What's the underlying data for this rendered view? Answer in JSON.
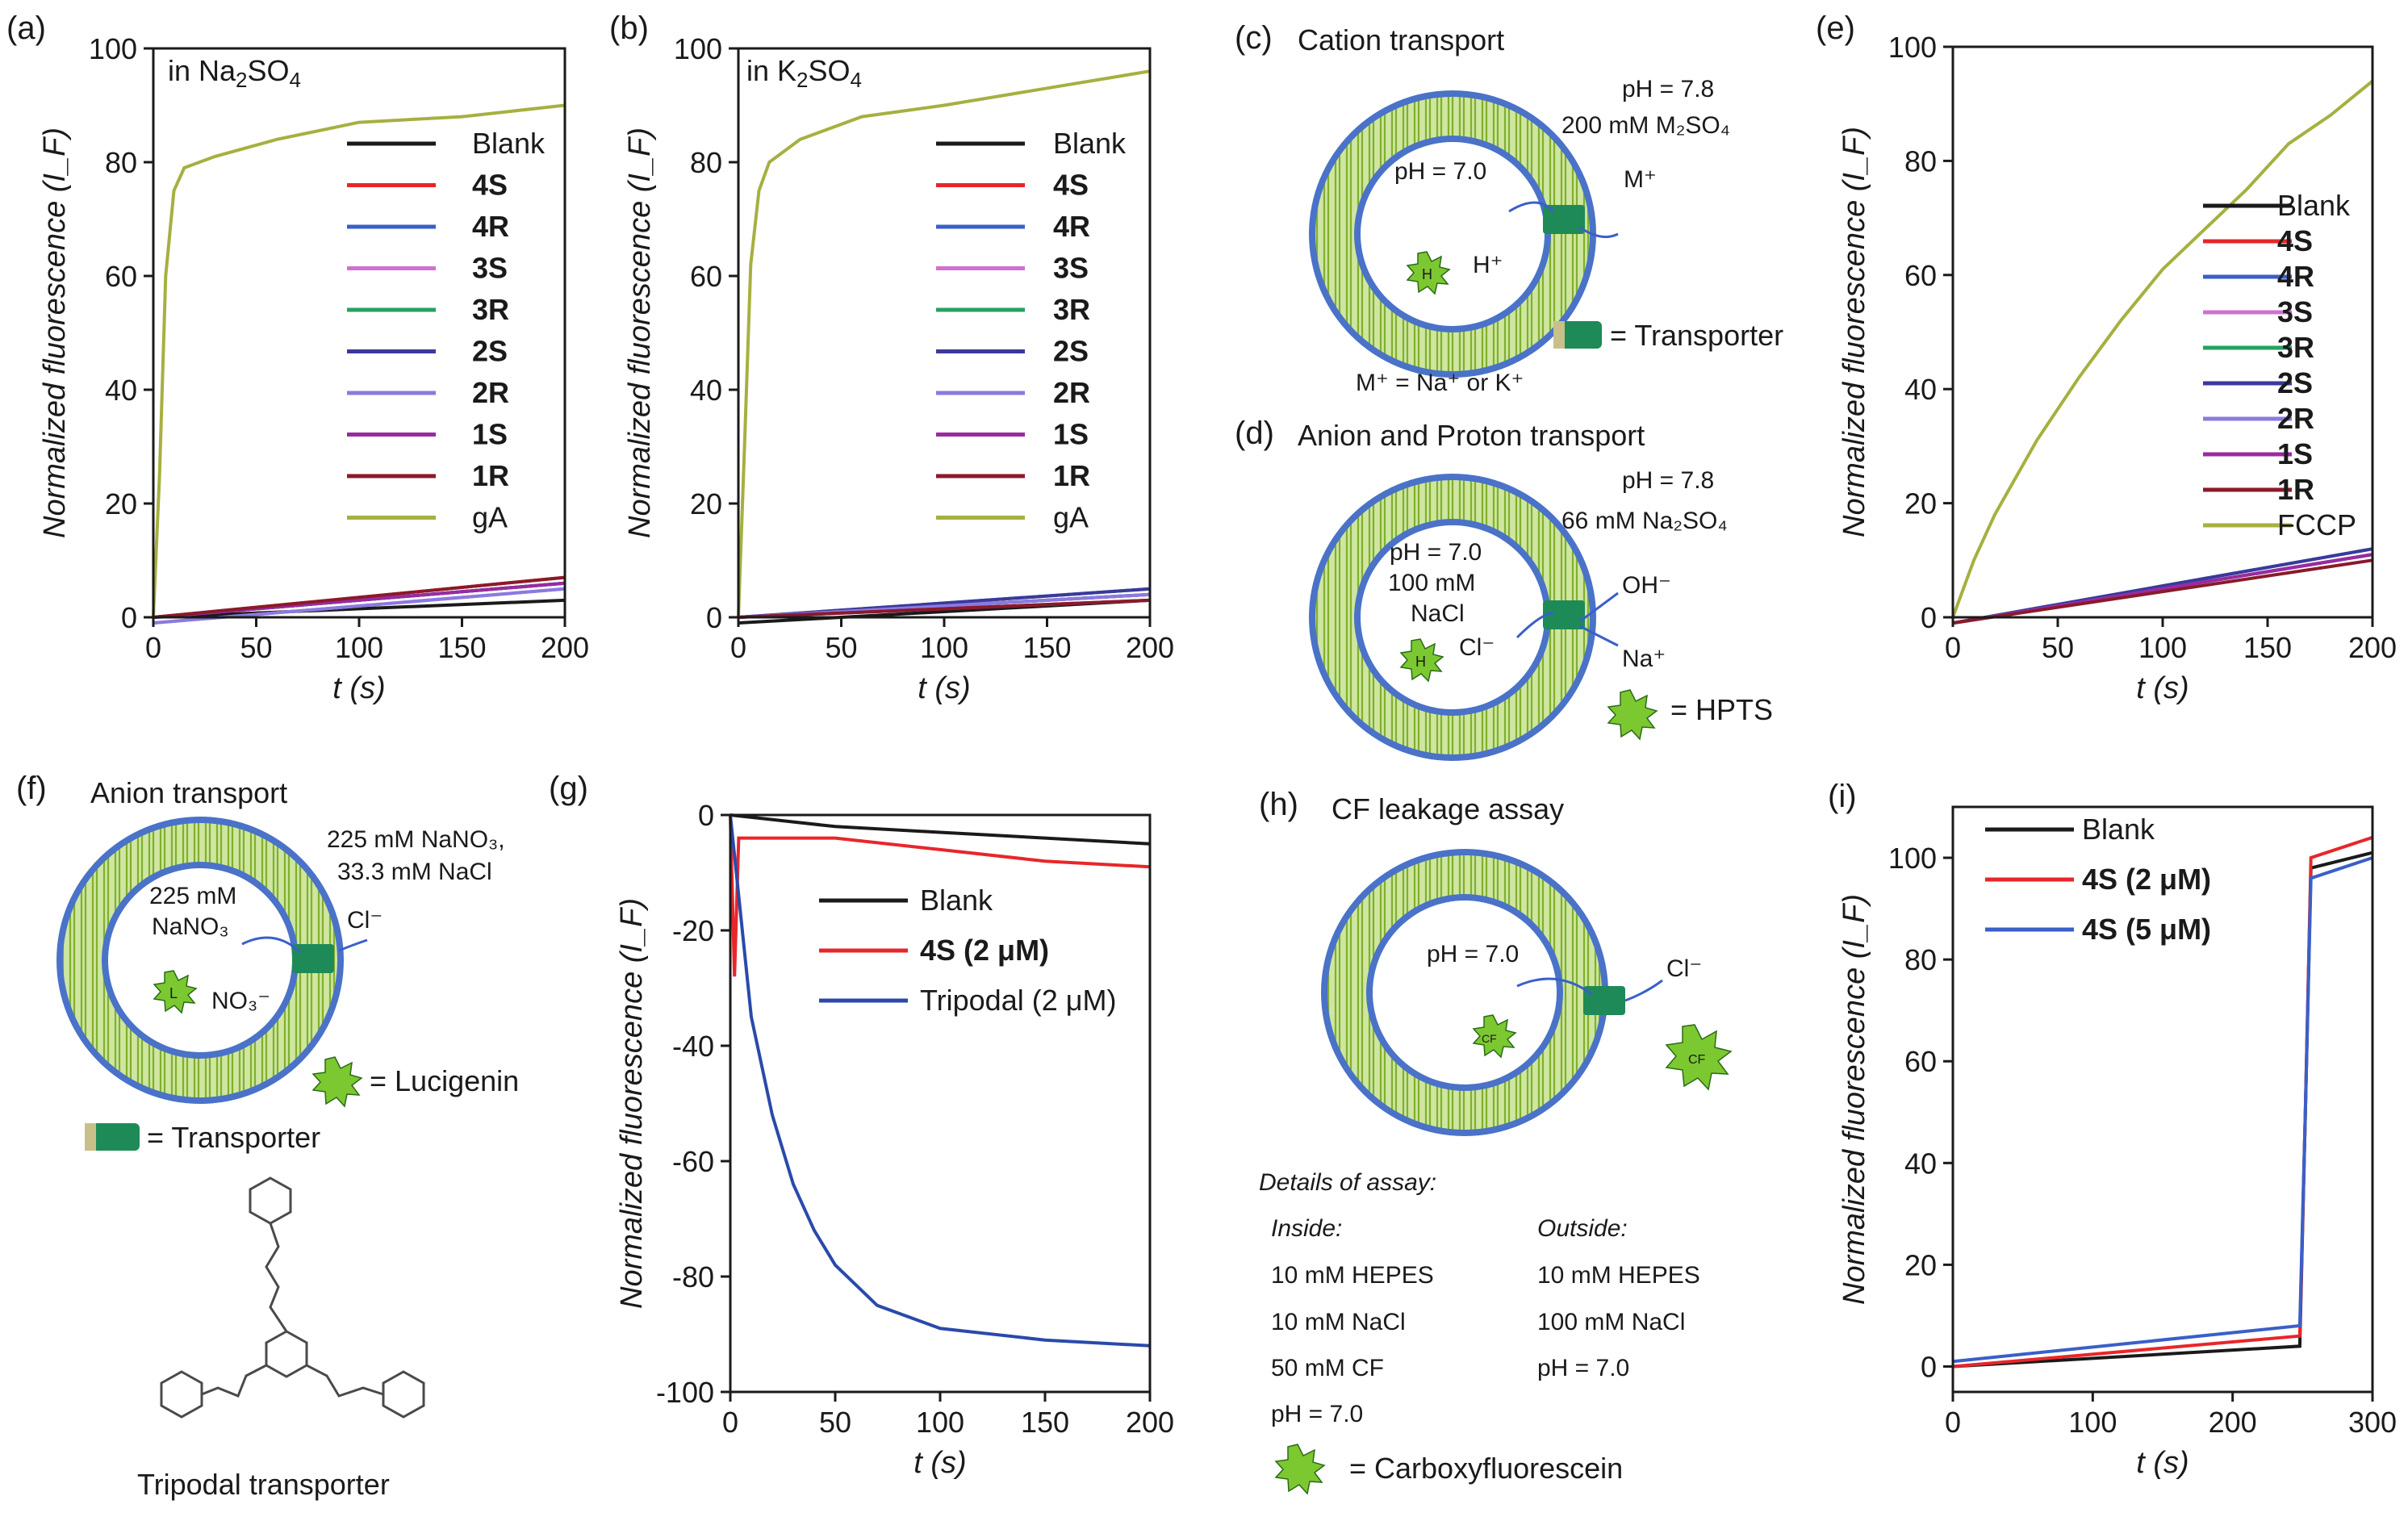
{
  "colors": {
    "blank": "#1a1a1a",
    "4S": "#e8262a",
    "4R": "#3a5fc8",
    "3S": "#d070d0",
    "3R": "#28a060",
    "2S": "#3a3a9a",
    "2R": "#8a7ae0",
    "1S": "#9a2aa0",
    "1R": "#8a1a2a",
    "gA": "#a6b040",
    "tripodal": "#2a4aaa",
    "membrane": "#4a72c8",
    "lipid": "#8cbc3a",
    "transporter": "#1e8a58",
    "dye": "#7cc830"
  },
  "panels": {
    "a": {
      "letter": "(a)",
      "tag": "in Na",
      "tag_sub": "2",
      "tag_tail": "SO",
      "tag_sub2": "4"
    },
    "b": {
      "letter": "(b)",
      "tag": "in K",
      "tag_sub": "2",
      "tag_tail": "SO",
      "tag_sub2": "4"
    },
    "c": {
      "letter": "(c)",
      "title": "Cation transport",
      "ph_out": "pH = 7.8",
      "salt_out": "200 mM M₂SO₄",
      "ph_in": "pH = 7.0",
      "ion_out": "M⁺",
      "ion_in": "H⁺",
      "legend_transporter": "= Transporter",
      "note": "M⁺ = Na⁺ or K⁺",
      "dye_label": "H"
    },
    "d": {
      "letter": "(d)",
      "title": "Anion and Proton transport",
      "ph_out": "pH = 7.8",
      "salt_out": "66 mM Na₂SO₄",
      "ph_in": "pH = 7.0",
      "salt_in_1": "100 mM",
      "salt_in_2": "NaCl",
      "ion_oh": "OH⁻",
      "ion_cl": "Cl⁻",
      "ion_na": "Na⁺",
      "legend_dye": "= HPTS",
      "dye_label": "H"
    },
    "e": {
      "letter": "(e)"
    },
    "f": {
      "letter": "(f)",
      "title": "Anion transport",
      "salt_out_1": "225 mM NaNO₃,",
      "salt_out_2": "33.3 mM NaCl",
      "salt_in_1": "225 mM",
      "salt_in_2": "NaNO₃",
      "ion_cl": "Cl⁻",
      "ion_no3": "NO₃⁻",
      "legend_dye": "= Lucigenin",
      "legend_transporter": "= Transporter",
      "structure_caption": "Tripodal transporter",
      "dye_label": "L"
    },
    "g": {
      "letter": "(g)"
    },
    "h": {
      "letter": "(h)",
      "title": "CF leakage assay",
      "ph_in": "pH = 7.0",
      "ion_cl": "Cl⁻",
      "details_title": "Details of assay:",
      "inside_title": "Inside:",
      "outside_title": "Outside:",
      "inside": [
        "10 mM HEPES",
        "10 mM NaCl",
        "50 mM CF",
        "pH = 7.0"
      ],
      "outside": [
        "10 mM HEPES",
        "100 mM NaCl",
        "pH = 7.0"
      ],
      "legend_dye": "= Carboxyfluorescein",
      "dye_label": "CF"
    },
    "i": {
      "letter": "(i)"
    }
  },
  "chart_data": [
    {
      "id": "a",
      "type": "line",
      "title": "in Na2SO4",
      "xlabel": "t (s)",
      "ylabel": "Normalized fluorescence (I_F)",
      "xlim": [
        0,
        200
      ],
      "ylim": [
        0,
        100
      ],
      "xticks": [
        "0",
        "50",
        "100",
        "150",
        "200"
      ],
      "yticks": [
        "0",
        "20",
        "40",
        "60",
        "80",
        "100"
      ],
      "legend": [
        "Blank",
        "4S",
        "4R",
        "3S",
        "3R",
        "2S",
        "2R",
        "1S",
        "1R",
        "gA"
      ],
      "series": [
        {
          "name": "Blank",
          "color": "#1a1a1a",
          "points": [
            [
              0,
              0
            ],
            [
              200,
              3
            ]
          ]
        },
        {
          "name": "4S",
          "color": "#e8262a",
          "points": [
            [
              0,
              0
            ],
            [
              200,
              7
            ]
          ]
        },
        {
          "name": "4R",
          "color": "#3a5fc8",
          "points": [
            [
              0,
              0
            ],
            [
              200,
              6
            ]
          ]
        },
        {
          "name": "3S",
          "color": "#d070d0",
          "points": [
            [
              0,
              -1
            ],
            [
              200,
              5
            ]
          ]
        },
        {
          "name": "3R",
          "color": "#28a060",
          "points": [
            [
              0,
              0
            ],
            [
              200,
              6
            ]
          ]
        },
        {
          "name": "2S",
          "color": "#3a3a9a",
          "points": [
            [
              0,
              0
            ],
            [
              200,
              6
            ]
          ]
        },
        {
          "name": "2R",
          "color": "#8a7ae0",
          "points": [
            [
              0,
              -1
            ],
            [
              200,
              5
            ]
          ]
        },
        {
          "name": "1S",
          "color": "#9a2aa0",
          "points": [
            [
              0,
              0
            ],
            [
              200,
              6
            ]
          ]
        },
        {
          "name": "1R",
          "color": "#8a1a2a",
          "points": [
            [
              0,
              0
            ],
            [
              200,
              7
            ]
          ]
        },
        {
          "name": "gA",
          "color": "#a6b040",
          "points": [
            [
              0,
              0
            ],
            [
              3,
              25
            ],
            [
              6,
              60
            ],
            [
              10,
              75
            ],
            [
              15,
              79
            ],
            [
              30,
              81
            ],
            [
              60,
              84
            ],
            [
              100,
              87
            ],
            [
              150,
              88
            ],
            [
              200,
              90
            ]
          ]
        }
      ]
    },
    {
      "id": "b",
      "type": "line",
      "title": "in K2SO4",
      "xlabel": "t (s)",
      "ylabel": "Normalized fluorescence (I_F)",
      "xlim": [
        0,
        200
      ],
      "ylim": [
        0,
        100
      ],
      "xticks": [
        "0",
        "50",
        "100",
        "150",
        "200"
      ],
      "yticks": [
        "0",
        "20",
        "40",
        "60",
        "80",
        "100"
      ],
      "legend": [
        "Blank",
        "4S",
        "4R",
        "3S",
        "3R",
        "2S",
        "2R",
        "1S",
        "1R",
        "gA"
      ],
      "series": [
        {
          "name": "Blank",
          "color": "#1a1a1a",
          "points": [
            [
              0,
              -1
            ],
            [
              200,
              3
            ]
          ]
        },
        {
          "name": "4S",
          "color": "#e8262a",
          "points": [
            [
              0,
              0
            ],
            [
              200,
              4
            ]
          ]
        },
        {
          "name": "4R",
          "color": "#3a5fc8",
          "points": [
            [
              0,
              0
            ],
            [
              200,
              5
            ]
          ]
        },
        {
          "name": "3S",
          "color": "#d070d0",
          "points": [
            [
              0,
              0
            ],
            [
              200,
              4
            ]
          ]
        },
        {
          "name": "3R",
          "color": "#28a060",
          "points": [
            [
              0,
              0
            ],
            [
              200,
              4
            ]
          ]
        },
        {
          "name": "2S",
          "color": "#3a3a9a",
          "points": [
            [
              0,
              0
            ],
            [
              200,
              5
            ]
          ]
        },
        {
          "name": "2R",
          "color": "#8a7ae0",
          "points": [
            [
              0,
              0
            ],
            [
              200,
              4
            ]
          ]
        },
        {
          "name": "1S",
          "color": "#9a2aa0",
          "points": [
            [
              0,
              0
            ],
            [
              200,
              3
            ]
          ]
        },
        {
          "name": "1R",
          "color": "#8a1a2a",
          "points": [
            [
              0,
              0
            ],
            [
              200,
              3
            ]
          ]
        },
        {
          "name": "gA",
          "color": "#a6b040",
          "points": [
            [
              0,
              0
            ],
            [
              3,
              30
            ],
            [
              6,
              62
            ],
            [
              10,
              75
            ],
            [
              15,
              80
            ],
            [
              30,
              84
            ],
            [
              60,
              88
            ],
            [
              100,
              90
            ],
            [
              150,
              93
            ],
            [
              200,
              96
            ]
          ]
        }
      ]
    },
    {
      "id": "e",
      "type": "line",
      "xlabel": "t (s)",
      "ylabel": "Normalized fluorescence (I_F)",
      "xlim": [
        0,
        200
      ],
      "ylim": [
        0,
        100
      ],
      "xticks": [
        "0",
        "50",
        "100",
        "150",
        "200"
      ],
      "yticks": [
        "0",
        "20",
        "40",
        "60",
        "80",
        "100"
      ],
      "legend": [
        "Blank",
        "4S",
        "4R",
        "3S",
        "3R",
        "2S",
        "2R",
        "1S",
        "1R",
        "FCCP"
      ],
      "series": [
        {
          "name": "Blank",
          "color": "#1a1a1a",
          "points": [
            [
              0,
              -1
            ],
            [
              200,
              11
            ]
          ]
        },
        {
          "name": "4S",
          "color": "#e8262a",
          "points": [
            [
              0,
              -1
            ],
            [
              200,
              11
            ]
          ]
        },
        {
          "name": "4R",
          "color": "#3a5fc8",
          "points": [
            [
              0,
              -1
            ],
            [
              200,
              12
            ]
          ]
        },
        {
          "name": "3S",
          "color": "#d070d0",
          "points": [
            [
              0,
              -1
            ],
            [
              200,
              11
            ]
          ]
        },
        {
          "name": "3R",
          "color": "#28a060",
          "points": [
            [
              0,
              -1
            ],
            [
              200,
              11
            ]
          ]
        },
        {
          "name": "2S",
          "color": "#3a3a9a",
          "points": [
            [
              0,
              -1
            ],
            [
              200,
              12
            ]
          ]
        },
        {
          "name": "2R",
          "color": "#8a7ae0",
          "points": [
            [
              0,
              -1
            ],
            [
              200,
              11
            ]
          ]
        },
        {
          "name": "1S",
          "color": "#9a2aa0",
          "points": [
            [
              0,
              -1
            ],
            [
              200,
              11
            ]
          ]
        },
        {
          "name": "1R",
          "color": "#8a1a2a",
          "points": [
            [
              0,
              -1
            ],
            [
              200,
              10
            ]
          ]
        },
        {
          "name": "FCCP",
          "color": "#a6b040",
          "points": [
            [
              0,
              0
            ],
            [
              10,
              10
            ],
            [
              20,
              18
            ],
            [
              40,
              31
            ],
            [
              60,
              42
            ],
            [
              80,
              52
            ],
            [
              100,
              61
            ],
            [
              120,
              68
            ],
            [
              140,
              75
            ],
            [
              160,
              83
            ],
            [
              180,
              88
            ],
            [
              200,
              94
            ]
          ]
        }
      ]
    },
    {
      "id": "g",
      "type": "line",
      "xlabel": "t (s)",
      "ylabel": "Normalized fluorescence (I_F)",
      "xlim": [
        0,
        200
      ],
      "ylim": [
        -100,
        0
      ],
      "xticks": [
        "0",
        "50",
        "100",
        "150",
        "200"
      ],
      "yticks": [
        "0",
        "-20",
        "-40",
        "-60",
        "-80",
        "-100"
      ],
      "legend": [
        "Blank",
        "4S (2 μM)",
        "Tripodal (2 μM)"
      ],
      "series": [
        {
          "name": "Blank",
          "color": "#1a1a1a",
          "points": [
            [
              0,
              0
            ],
            [
              50,
              -2
            ],
            [
              100,
              -3
            ],
            [
              150,
              -4
            ],
            [
              200,
              -5
            ]
          ]
        },
        {
          "name": "4S (2 μM)",
          "color": "#e8262a",
          "points": [
            [
              0,
              0
            ],
            [
              2,
              -28
            ],
            [
              4,
              -4
            ],
            [
              50,
              -4
            ],
            [
              100,
              -6
            ],
            [
              150,
              -8
            ],
            [
              200,
              -9
            ]
          ]
        },
        {
          "name": "Tripodal (2 μM)",
          "color": "#2a4aaa",
          "points": [
            [
              0,
              0
            ],
            [
              10,
              -35
            ],
            [
              20,
              -52
            ],
            [
              30,
              -64
            ],
            [
              40,
              -72
            ],
            [
              50,
              -78
            ],
            [
              70,
              -85
            ],
            [
              100,
              -89
            ],
            [
              150,
              -91
            ],
            [
              200,
              -92
            ]
          ]
        }
      ]
    },
    {
      "id": "i",
      "type": "line",
      "xlabel": "t (s)",
      "ylabel": "Normalized fluorescence (I_F)",
      "xlim": [
        0,
        300
      ],
      "ylim": [
        -5,
        110
      ],
      "xticks": [
        "0",
        "100",
        "200",
        "300"
      ],
      "yticks": [
        "0",
        "20",
        "40",
        "60",
        "80",
        "100"
      ],
      "legend": [
        "Blank",
        "4S (2 μM)",
        "4S (5 μM)"
      ],
      "series": [
        {
          "name": "Blank",
          "color": "#1a1a1a",
          "points": [
            [
              0,
              0
            ],
            [
              248,
              4
            ],
            [
              252,
              50
            ],
            [
              256,
              98
            ],
            [
              300,
              101
            ]
          ]
        },
        {
          "name": "4S (2 μM)",
          "color": "#e8262a",
          "points": [
            [
              0,
              0
            ],
            [
              248,
              6
            ],
            [
              252,
              50
            ],
            [
              256,
              100
            ],
            [
              300,
              104
            ]
          ]
        },
        {
          "name": "4S (5 μM)",
          "color": "#3a5fc8",
          "points": [
            [
              0,
              1
            ],
            [
              248,
              8
            ],
            [
              252,
              50
            ],
            [
              256,
              96
            ],
            [
              300,
              100
            ]
          ]
        }
      ]
    }
  ]
}
